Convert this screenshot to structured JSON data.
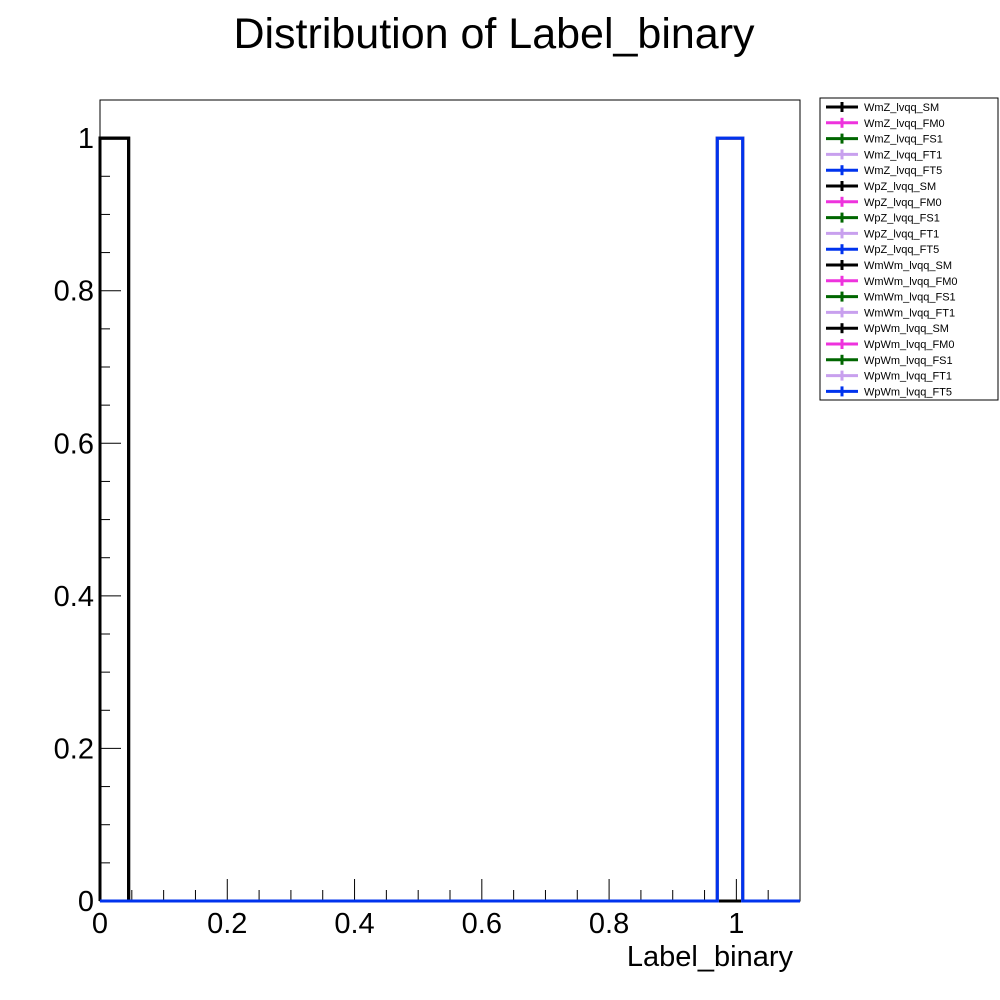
{
  "chart_data": {
    "type": "histogram",
    "title": "Distribution of Label_binary",
    "xlabel": "Label_binary",
    "ylabel": "",
    "xlim": [
      0,
      1.1
    ],
    "ylim": [
      0,
      1.05
    ],
    "x_ticks": [
      0,
      0.2,
      0.4,
      0.6,
      0.8,
      1
    ],
    "x_tick_labels": [
      "0",
      "0.2",
      "0.4",
      "0.6",
      "0.8",
      "1"
    ],
    "y_ticks": [
      0,
      0.2,
      0.4,
      0.6,
      0.8,
      1
    ],
    "y_tick_labels": [
      "0",
      "0.2",
      "0.4",
      "0.6",
      "0.8",
      "1"
    ],
    "grid": false,
    "legend_position": "top-right outside",
    "series": [
      {
        "name": "WmZ_lvqq_SM",
        "color": "#000000",
        "bins": [
          [
            0,
            0.045,
            1
          ]
        ]
      },
      {
        "name": "WmZ_lvqq_FM0",
        "color": "#ee33dd",
        "bins": [
          [
            0.97,
            1.01,
            1
          ]
        ]
      },
      {
        "name": "WmZ_lvqq_FS1",
        "color": "#006600",
        "bins": [
          [
            0.97,
            1.01,
            1
          ]
        ]
      },
      {
        "name": "WmZ_lvqq_FT1",
        "color": "#c8a0ee",
        "bins": [
          [
            0.97,
            1.01,
            1
          ]
        ]
      },
      {
        "name": "WmZ_lvqq_FT5",
        "color": "#0033ee",
        "bins": [
          [
            0.97,
            1.01,
            1
          ]
        ]
      },
      {
        "name": "WpZ_lvqq_SM",
        "color": "#000000",
        "bins": [
          [
            0,
            0.045,
            1
          ]
        ]
      },
      {
        "name": "WpZ_lvqq_FM0",
        "color": "#ee33dd",
        "bins": [
          [
            0.97,
            1.01,
            1
          ]
        ]
      },
      {
        "name": "WpZ_lvqq_FS1",
        "color": "#006600",
        "bins": [
          [
            0.97,
            1.01,
            1
          ]
        ]
      },
      {
        "name": "WpZ_lvqq_FT1",
        "color": "#c8a0ee",
        "bins": [
          [
            0.97,
            1.01,
            1
          ]
        ]
      },
      {
        "name": "WpZ_lvqq_FT5",
        "color": "#0033ee",
        "bins": [
          [
            0.97,
            1.01,
            1
          ]
        ]
      },
      {
        "name": "WmWm_lvqq_SM",
        "color": "#000000",
        "bins": [
          [
            0,
            0.045,
            1
          ]
        ]
      },
      {
        "name": "WmWm_lvqq_FM0",
        "color": "#ee33dd",
        "bins": [
          [
            0.97,
            1.01,
            1
          ]
        ]
      },
      {
        "name": "WmWm_lvqq_FS1",
        "color": "#006600",
        "bins": [
          [
            0.97,
            1.01,
            1
          ]
        ]
      },
      {
        "name": "WmWm_lvqq_FT1",
        "color": "#c8a0ee",
        "bins": [
          [
            0.97,
            1.01,
            1
          ]
        ]
      },
      {
        "name": "WpWm_lvqq_SM",
        "color": "#000000",
        "bins": [
          [
            0,
            0.045,
            1
          ]
        ]
      },
      {
        "name": "WpWm_lvqq_FM0",
        "color": "#ee33dd",
        "bins": [
          [
            0.97,
            1.01,
            1
          ]
        ]
      },
      {
        "name": "WpWm_lvqq_FS1",
        "color": "#006600",
        "bins": [
          [
            0.97,
            1.01,
            1
          ]
        ]
      },
      {
        "name": "WpWm_lvqq_FT1",
        "color": "#c8a0ee",
        "bins": [
          [
            0.97,
            1.01,
            1
          ]
        ]
      },
      {
        "name": "WpWm_lvqq_FT5",
        "color": "#0033ee",
        "bins": [
          [
            0.97,
            1.01,
            1
          ]
        ]
      }
    ]
  }
}
